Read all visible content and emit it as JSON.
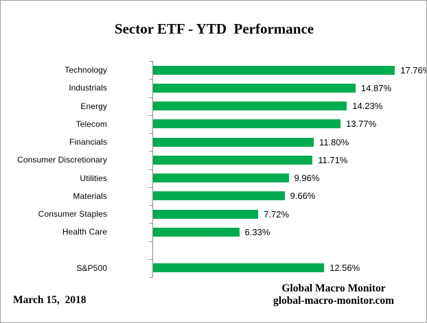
{
  "chart_data": {
    "type": "bar",
    "orientation": "horizontal",
    "title": "Sector ETF - YTD  Performance",
    "categories": [
      "Technology",
      "Industrials",
      "Energy",
      "Telecom",
      "Financials",
      "Consumer Discretionary",
      "Utilities",
      "Materials",
      "Consumer Staples",
      "Health Care",
      "",
      "S&P500"
    ],
    "values": [
      17.76,
      14.87,
      14.23,
      13.77,
      11.8,
      11.71,
      9.96,
      9.66,
      7.72,
      6.33,
      null,
      12.56
    ],
    "value_labels": [
      "17.76%",
      "14.87%",
      "14.23%",
      "13.77%",
      "11.80%",
      "11.71%",
      "9.96%",
      "9.66%",
      "7.72%",
      "6.33%",
      "",
      "12.56%"
    ],
    "xlabel": "",
    "ylabel": "",
    "xlim": [
      0,
      18
    ],
    "grid": false,
    "legend": false,
    "bar_color": "#00ac50",
    "axis_color": "#8c8c8c"
  },
  "footer": {
    "date": "March 15,  2018",
    "attribution_name": "Global Macro Monitor",
    "attribution_url": "global-macro-monitor.com"
  }
}
